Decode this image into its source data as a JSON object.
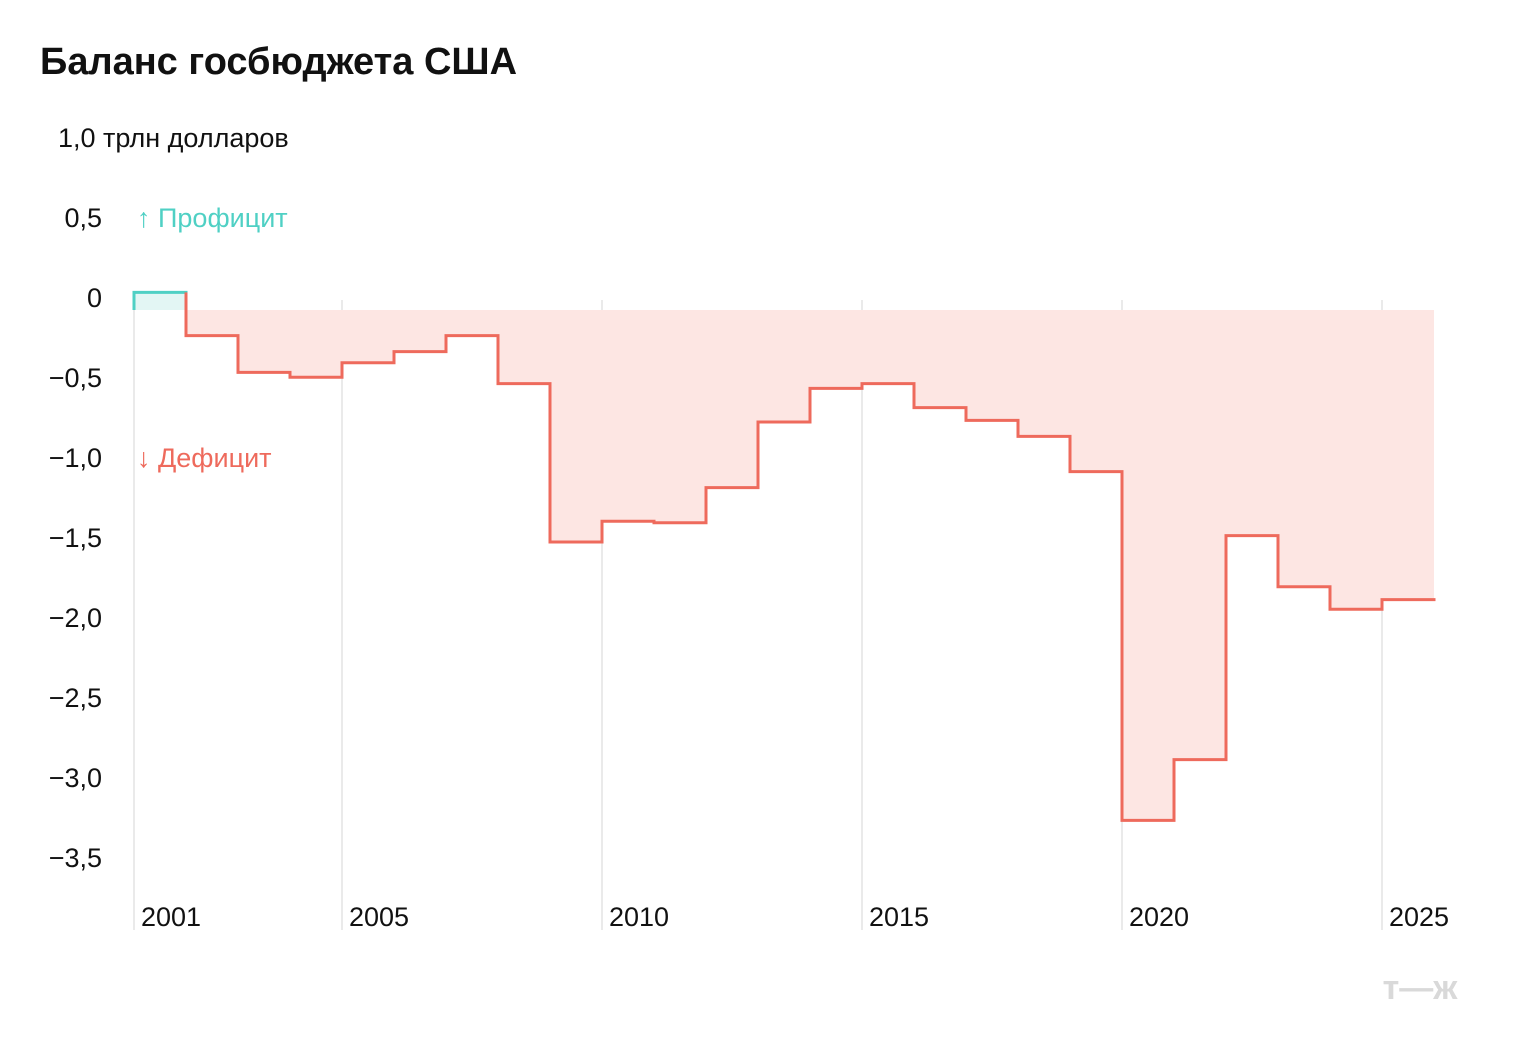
{
  "chart_data": {
    "type": "step",
    "title": "Баланс госбюджета США",
    "annotations": {
      "surplus": "↑ Профицит",
      "deficit": "↓ Дефицит"
    },
    "logo": "т—ж",
    "x": [
      2001,
      2002,
      2003,
      2004,
      2005,
      2006,
      2007,
      2008,
      2009,
      2010,
      2011,
      2012,
      2013,
      2014,
      2015,
      2016,
      2017,
      2018,
      2019,
      2020,
      2021,
      2022,
      2023,
      2024,
      2025
    ],
    "values": [
      0.11,
      -0.16,
      -0.39,
      -0.42,
      -0.33,
      -0.26,
      -0.16,
      -0.46,
      -1.45,
      -1.32,
      -1.33,
      -1.11,
      -0.7,
      -0.49,
      -0.46,
      -0.61,
      -0.69,
      -0.79,
      -1.01,
      -3.19,
      -2.81,
      -1.41,
      -1.73,
      -1.87,
      -1.81
    ],
    "color": "#ee6a5c",
    "fill": "#fde6e3",
    "positive_color": "#4fd0c4",
    "positive_fill": "#e3f6f4",
    "xlim": [
      2001,
      2026
    ],
    "xticks": [
      2001,
      2005,
      2010,
      2015,
      2020,
      2025
    ],
    "ylim": [
      -3.75,
      1.0
    ],
    "yticks": [
      {
        "value": 1.0,
        "label": "1,0 трлн долларов"
      },
      {
        "value": 0.5,
        "label": "0,5"
      },
      0,
      {
        "value": -0.5,
        "label": "−0,5"
      },
      {
        "value": -1.0,
        "label": "−1,0"
      },
      {
        "value": -1.5,
        "label": "−1,5"
      },
      {
        "value": -2.0,
        "label": "−2,0"
      },
      {
        "value": -2.5,
        "label": "−2,5"
      },
      {
        "value": -3.0,
        "label": "−3,0"
      },
      {
        "value": -3.5,
        "label": "−3,5"
      }
    ],
    "grid": true
  }
}
